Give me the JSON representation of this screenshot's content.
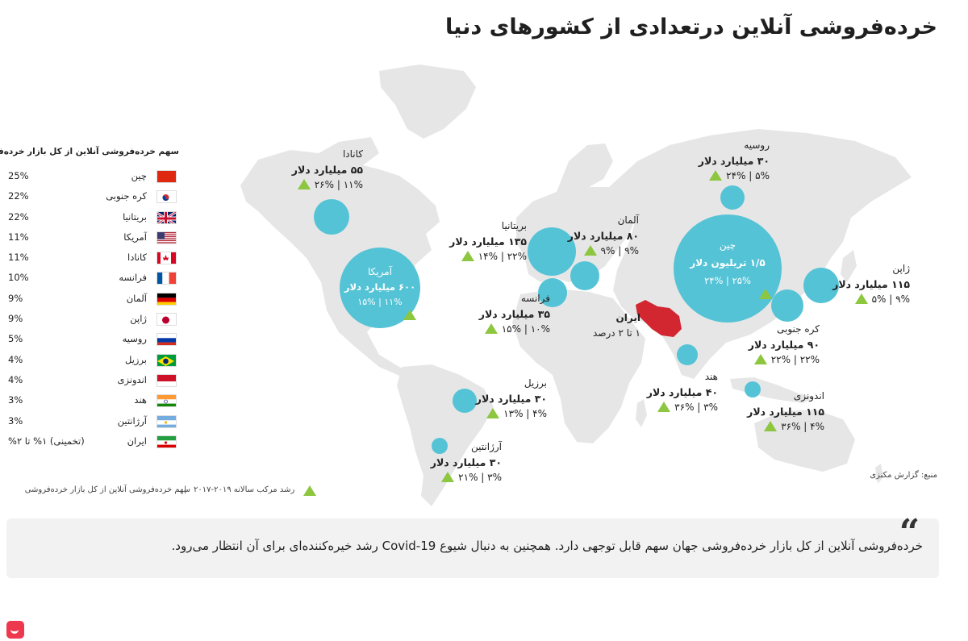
{
  "title": "خرده‌فروشی آنلاین درتعدادی از کشورهای دنیا",
  "colors": {
    "land": "#e6e6e6",
    "bubble": "#55c3d6",
    "triangle": "#8dc63f",
    "iran": "#d22630"
  },
  "countries": {
    "canada": {
      "name": "کانادا",
      "value": "۵۵ میلیارد دلار",
      "stats": "۱۱% | ۲۶%"
    },
    "usa": {
      "name": "آمریکا",
      "value": "۶۰۰ میلیارد دلار",
      "stats": "۱۱% | ۱۵%"
    },
    "uk": {
      "name": "بریتانیا",
      "value": "۱۳۵ میلیارد دلار",
      "stats": "۲۲% | ۱۴%"
    },
    "germany": {
      "name": "آلمان",
      "value": "۸۰ میلیارد دلار",
      "stats": "۹% | ۹%"
    },
    "france": {
      "name": "فرانسه",
      "value": "۳۵ میلیارد دلار",
      "stats": "۱۰% | ۱۵%"
    },
    "russia": {
      "name": "روسیه",
      "value": "۳۰ میلیارد دلار",
      "stats": "۵% | ۲۴%"
    },
    "china": {
      "name": "چین",
      "value": "۱/۵ تریلیون دلار",
      "stats": "۲۵% | ۲۴%"
    },
    "japan": {
      "name": "ژاپن",
      "value": "۱۱۵ میلیارد دلار",
      "stats": "۹% | ۵%"
    },
    "korea": {
      "name": "کره جنوبی",
      "value": "۹۰ میلیارد دلار",
      "stats": "۲۲% | ۲۲%"
    },
    "iran": {
      "name": "ایران",
      "value": "۱ تا ۲ درصد"
    },
    "india": {
      "name": "هند",
      "value": "۴۰ میلیارد دلار",
      "stats": "۳% | ۳۶%"
    },
    "indonesia": {
      "name": "اندونزی",
      "value": "۱۱۵ میلیارد دلار",
      "stats": "۴% | ۳۶%"
    },
    "brazil": {
      "name": "برزیل",
      "value": "۳۰ میلیارد دلار",
      "stats": "۴% | ۱۳%"
    },
    "argentina": {
      "name": "آرژانتین",
      "value": "۳۰ میلیارد دلار",
      "stats": "۳% | ۲۱%"
    }
  },
  "legend": {
    "heading": "سهم خرده‌فروشی آنلاین از کل بازار خرده‌فروشی",
    "rows": [
      {
        "country": "چین",
        "percent": "25%",
        "flag": "china"
      },
      {
        "country": "کره جنوبی",
        "percent": "22%",
        "flag": "korea"
      },
      {
        "country": "بریتانیا",
        "percent": "22%",
        "flag": "uk"
      },
      {
        "country": "آمریکا",
        "percent": "11%",
        "flag": "usa"
      },
      {
        "country": "کانادا",
        "percent": "11%",
        "flag": "canada"
      },
      {
        "country": "فرانسه",
        "percent": "10%",
        "flag": "france"
      },
      {
        "country": "آلمان",
        "percent": "9%",
        "flag": "germany"
      },
      {
        "country": "ژاپن",
        "percent": "9%",
        "flag": "japan"
      },
      {
        "country": "روسیه",
        "percent": "5%",
        "flag": "russia"
      },
      {
        "country": "برزیل",
        "percent": "4%",
        "flag": "brazil"
      },
      {
        "country": "اندونزی",
        "percent": "4%",
        "flag": "indonesia"
      },
      {
        "country": "هند",
        "percent": "3%",
        "flag": "india"
      },
      {
        "country": "آرژانتین",
        "percent": "3%",
        "flag": "argentina"
      },
      {
        "country": "ایران",
        "percent": "(تخمینی) ۱% تا ۲%",
        "flag": "iran"
      }
    ]
  },
  "footer": {
    "share_label": "سهم خرده‌فروشی آنلاین از کل بازار خرده‌فروشی",
    "separator": "|",
    "growth_label": "رشد مرکب سالانه ۲۰۱۹-۲۰۱۷",
    "source": "منبع: گزارش مکنزی"
  },
  "quote": {
    "mark": "“",
    "text": "خرده‌فروشی آنلاین از کل بازار خرده‌فروشی جهان سهم قابل توجهی دارد. همچنین به دنبال شیوع Covid-19 رشد خیره‌کننده‌ای برای آن انتظار می‌رود."
  }
}
